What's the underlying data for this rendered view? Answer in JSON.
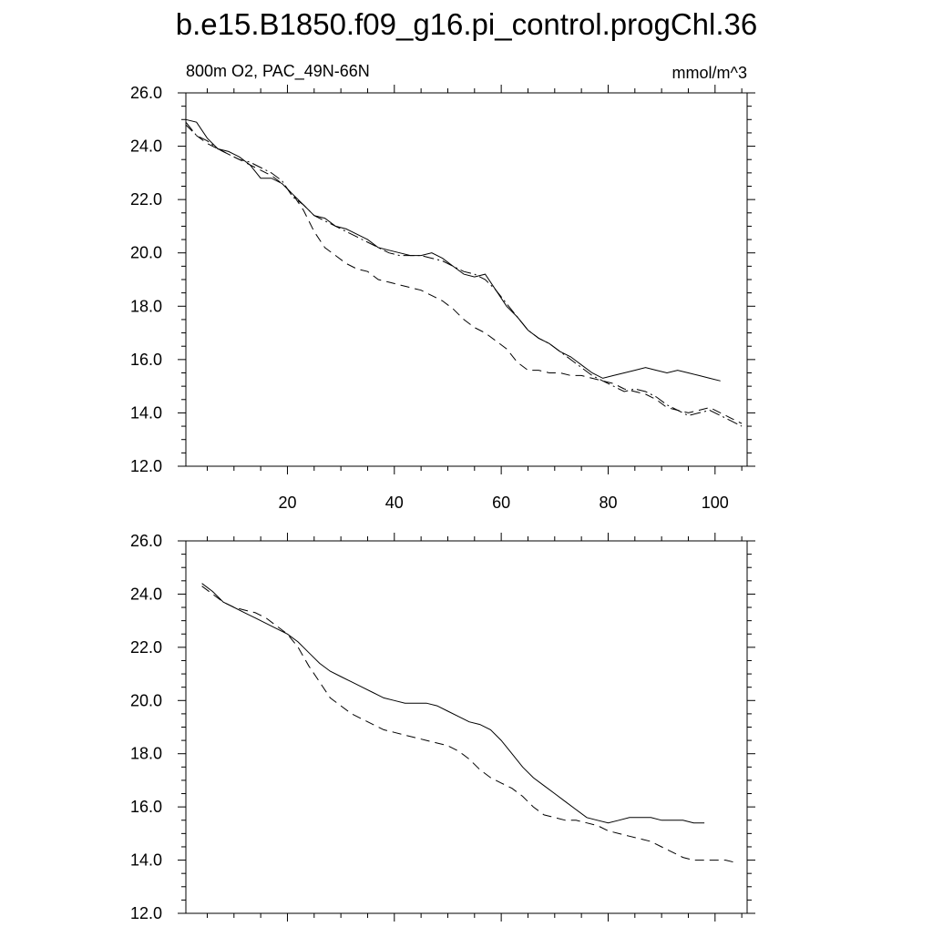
{
  "title": "b.e15.B1850.f09_g16.pi_control.progChl.36",
  "chart_data": [
    {
      "type": "line",
      "panel": "top",
      "left_title": "800m O2, PAC_49N-66N",
      "right_title": "mmol/m^3",
      "xlim": [
        1,
        106
      ],
      "ylim": [
        12.0,
        26.0
      ],
      "yticks": [
        "12.0",
        "14.0",
        "16.0",
        "18.0",
        "20.0",
        "22.0",
        "24.0",
        "26.0"
      ],
      "xticks": [
        "20",
        "40",
        "60",
        "80",
        "100"
      ],
      "series": [
        {
          "name": "solid",
          "dash": "none",
          "x": [
            1,
            3,
            5,
            7,
            9,
            11,
            13,
            15,
            17,
            19,
            21,
            23,
            25,
            27,
            29,
            31,
            33,
            35,
            37,
            39,
            41,
            43,
            45,
            47,
            49,
            51,
            53,
            55,
            57,
            59,
            61,
            63,
            65,
            67,
            69,
            71,
            73,
            75,
            77,
            79,
            81,
            83,
            85,
            87,
            89,
            91,
            93,
            95,
            97,
            99,
            101
          ],
          "y": [
            25.0,
            24.9,
            24.3,
            23.9,
            23.8,
            23.6,
            23.3,
            22.8,
            22.8,
            22.6,
            22.2,
            21.8,
            21.4,
            21.3,
            21.0,
            20.9,
            20.7,
            20.5,
            20.2,
            20.1,
            20.0,
            19.9,
            19.9,
            20.0,
            19.8,
            19.5,
            19.2,
            19.1,
            19.2,
            18.6,
            18.0,
            17.6,
            17.1,
            16.8,
            16.6,
            16.3,
            16.1,
            15.8,
            15.5,
            15.3,
            15.4,
            15.5,
            15.6,
            15.7,
            15.6,
            15.5,
            15.6,
            15.5,
            15.4,
            15.3,
            15.2
          ]
        },
        {
          "name": "dashed",
          "dash": "10 6",
          "x": [
            1,
            3,
            5,
            7,
            9,
            11,
            13,
            15,
            17,
            19,
            21,
            23,
            25,
            27,
            29,
            31,
            33,
            35,
            37,
            39,
            41,
            43,
            45,
            47,
            49,
            51,
            53,
            55,
            57,
            59,
            61,
            63,
            65,
            67,
            69,
            71,
            73,
            75,
            77,
            79,
            81,
            83,
            85,
            87,
            89,
            91,
            93,
            95,
            97,
            99,
            101,
            103,
            105
          ],
          "y": [
            24.8,
            24.4,
            24.1,
            23.9,
            23.7,
            23.5,
            23.3,
            23.1,
            22.9,
            22.6,
            22.2,
            21.6,
            20.8,
            20.2,
            19.9,
            19.6,
            19.4,
            19.3,
            19.0,
            18.9,
            18.8,
            18.7,
            18.6,
            18.4,
            18.2,
            17.9,
            17.5,
            17.2,
            17.0,
            16.7,
            16.4,
            15.9,
            15.6,
            15.6,
            15.5,
            15.5,
            15.4,
            15.4,
            15.3,
            15.2,
            15.1,
            14.9,
            14.8,
            14.7,
            14.5,
            14.2,
            14.1,
            14.0,
            14.1,
            14.2,
            14.0,
            13.8,
            13.6
          ]
        },
        {
          "name": "dash-dot",
          "dash": "12 4 2 4",
          "x": [
            1,
            3,
            5,
            7,
            9,
            11,
            13,
            15,
            17,
            19,
            21,
            23,
            25,
            27,
            29,
            31,
            33,
            35,
            37,
            39,
            41,
            43,
            45,
            47,
            49,
            51,
            53,
            55,
            57,
            59,
            61,
            63,
            65,
            67,
            69,
            71,
            73,
            75,
            77,
            79,
            81,
            83,
            85,
            87,
            89,
            91,
            93,
            95,
            97,
            99,
            101,
            103,
            105
          ],
          "y": [
            24.9,
            24.4,
            24.2,
            23.9,
            23.7,
            23.5,
            23.4,
            23.2,
            23.0,
            22.7,
            22.1,
            21.8,
            21.4,
            21.2,
            21.0,
            20.8,
            20.6,
            20.4,
            20.2,
            20.0,
            19.9,
            19.9,
            19.9,
            19.8,
            19.7,
            19.5,
            19.3,
            19.2,
            19.0,
            18.6,
            18.1,
            17.6,
            17.1,
            16.8,
            16.6,
            16.3,
            16.0,
            15.7,
            15.4,
            15.2,
            15.0,
            14.8,
            14.9,
            14.8,
            14.6,
            14.3,
            14.1,
            13.9,
            14.0,
            14.1,
            13.9,
            13.7,
            13.5
          ]
        }
      ]
    },
    {
      "type": "line",
      "panel": "bottom",
      "xlim": [
        1,
        106
      ],
      "ylim": [
        12.0,
        26.0
      ],
      "yticks": [
        "12.0",
        "14.0",
        "16.0",
        "18.0",
        "20.0",
        "22.0",
        "24.0",
        "26.0"
      ],
      "series": [
        {
          "name": "solid",
          "dash": "none",
          "x": [
            4,
            6,
            8,
            10,
            12,
            14,
            16,
            18,
            20,
            22,
            24,
            26,
            28,
            30,
            32,
            34,
            36,
            38,
            40,
            42,
            44,
            46,
            48,
            50,
            52,
            54,
            56,
            58,
            60,
            62,
            64,
            66,
            68,
            70,
            72,
            74,
            76,
            78,
            80,
            82,
            84,
            86,
            88,
            90,
            92,
            94,
            96,
            98
          ],
          "y": [
            24.4,
            24.1,
            23.7,
            23.5,
            23.3,
            23.1,
            22.9,
            22.7,
            22.5,
            22.2,
            21.8,
            21.4,
            21.1,
            20.9,
            20.7,
            20.5,
            20.3,
            20.1,
            20.0,
            19.9,
            19.9,
            19.9,
            19.8,
            19.6,
            19.4,
            19.2,
            19.1,
            18.9,
            18.5,
            18.0,
            17.5,
            17.1,
            16.8,
            16.5,
            16.2,
            15.9,
            15.6,
            15.5,
            15.4,
            15.5,
            15.6,
            15.6,
            15.6,
            15.5,
            15.5,
            15.5,
            15.4,
            15.4
          ]
        },
        {
          "name": "dashed",
          "dash": "10 6",
          "x": [
            4,
            6,
            8,
            10,
            12,
            14,
            16,
            18,
            20,
            22,
            24,
            26,
            28,
            30,
            32,
            34,
            36,
            38,
            40,
            42,
            44,
            46,
            48,
            50,
            52,
            54,
            56,
            58,
            60,
            62,
            64,
            66,
            68,
            70,
            72,
            74,
            76,
            78,
            80,
            82,
            84,
            86,
            88,
            90,
            92,
            94,
            96,
            98,
            100,
            102,
            104
          ],
          "y": [
            24.3,
            24.0,
            23.7,
            23.5,
            23.4,
            23.3,
            23.1,
            22.8,
            22.5,
            22.0,
            21.3,
            20.7,
            20.1,
            19.8,
            19.5,
            19.3,
            19.1,
            18.9,
            18.8,
            18.7,
            18.6,
            18.5,
            18.4,
            18.3,
            18.1,
            17.8,
            17.4,
            17.1,
            16.9,
            16.7,
            16.4,
            16.0,
            15.7,
            15.6,
            15.5,
            15.5,
            15.4,
            15.3,
            15.1,
            15.0,
            14.9,
            14.8,
            14.7,
            14.5,
            14.3,
            14.1,
            14.0,
            14.0,
            14.0,
            14.0,
            13.9
          ]
        }
      ]
    }
  ]
}
